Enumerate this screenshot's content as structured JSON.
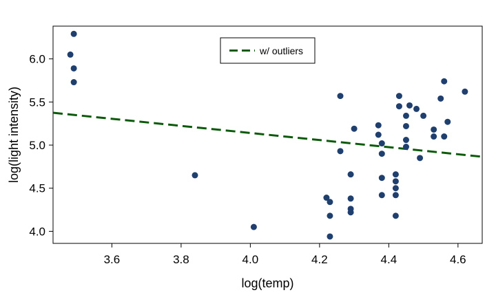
{
  "chart_data": {
    "type": "scatter",
    "xlabel": "log(temp)",
    "ylabel": "log(light intensity)",
    "xlim": [
      3.43,
      4.67
    ],
    "ylim": [
      3.86,
      6.38
    ],
    "x_ticks": [
      3.6,
      3.8,
      4.0,
      4.2,
      4.4,
      4.6
    ],
    "y_ticks": [
      4.0,
      4.5,
      5.0,
      5.5,
      6.0
    ],
    "x_tick_labels": [
      "3.6",
      "3.8",
      "4.0",
      "4.2",
      "4.4",
      "4.6"
    ],
    "y_tick_labels": [
      "4.0",
      "4.5",
      "5.0",
      "5.5",
      "6.0"
    ],
    "grid": false,
    "legend": {
      "position": "top-center",
      "entries": [
        "w/ outliers"
      ]
    },
    "colors": {
      "points": "#1f3f6e",
      "fit_line": "#0a5a0a"
    },
    "points": [
      [
        3.48,
        6.05
      ],
      [
        3.49,
        6.29
      ],
      [
        3.49,
        5.89
      ],
      [
        3.49,
        5.73
      ],
      [
        3.84,
        4.65
      ],
      [
        4.01,
        4.05
      ],
      [
        4.22,
        4.39
      ],
      [
        4.23,
        4.34
      ],
      [
        4.23,
        4.18
      ],
      [
        4.23,
        3.94
      ],
      [
        4.26,
        5.57
      ],
      [
        4.26,
        4.93
      ],
      [
        4.29,
        4.66
      ],
      [
        4.29,
        4.38
      ],
      [
        4.29,
        4.26
      ],
      [
        4.29,
        4.22
      ],
      [
        4.3,
        5.19
      ],
      [
        4.37,
        5.23
      ],
      [
        4.37,
        5.12
      ],
      [
        4.38,
        5.02
      ],
      [
        4.38,
        4.9
      ],
      [
        4.38,
        4.62
      ],
      [
        4.38,
        4.42
      ],
      [
        4.42,
        4.66
      ],
      [
        4.42,
        4.58
      ],
      [
        4.42,
        4.5
      ],
      [
        4.42,
        4.42
      ],
      [
        4.42,
        4.18
      ],
      [
        4.43,
        5.57
      ],
      [
        4.43,
        5.45
      ],
      [
        4.45,
        5.34
      ],
      [
        4.45,
        5.22
      ],
      [
        4.45,
        5.06
      ],
      [
        4.45,
        4.98
      ],
      [
        4.46,
        5.46
      ],
      [
        4.48,
        5.42
      ],
      [
        4.49,
        4.85
      ],
      [
        4.5,
        5.34
      ],
      [
        4.53,
        5.18
      ],
      [
        4.53,
        5.1
      ],
      [
        4.55,
        5.54
      ],
      [
        4.56,
        5.74
      ],
      [
        4.56,
        5.1
      ],
      [
        4.57,
        5.27
      ],
      [
        4.62,
        5.62
      ]
    ],
    "fit_line": {
      "name": "w/ outliers",
      "x": [
        3.43,
        4.67
      ],
      "y": [
        5.375,
        4.865
      ],
      "style": "dashed"
    }
  }
}
